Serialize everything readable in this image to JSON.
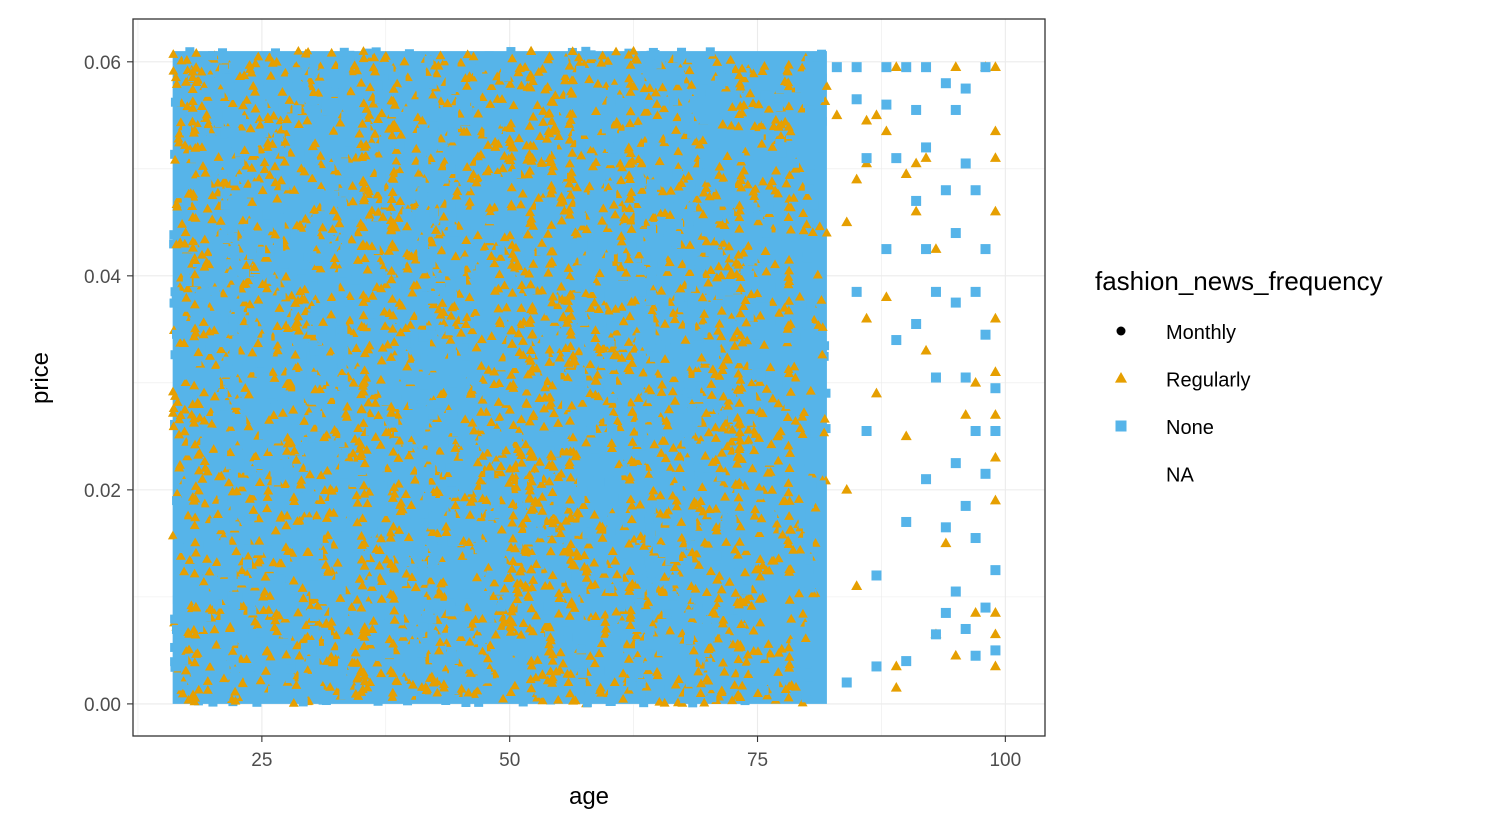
{
  "chart_data": {
    "type": "scatter",
    "title": "",
    "xlabel": "age",
    "ylabel": "price",
    "xlim": [
      12,
      104
    ],
    "ylim": [
      -0.003,
      0.064
    ],
    "grid": true,
    "legend_position": "right",
    "x_ticks": [
      {
        "value": 25,
        "label": "25"
      },
      {
        "value": 50,
        "label": "50"
      },
      {
        "value": 75,
        "label": "75"
      },
      {
        "value": 100,
        "label": "100"
      }
    ],
    "y_ticks": [
      {
        "value": 0.0,
        "label": "0.00"
      },
      {
        "value": 0.02,
        "label": "0.02"
      },
      {
        "value": 0.04,
        "label": "0.04"
      },
      {
        "value": 0.06,
        "label": "0.06"
      }
    ],
    "legend": {
      "title": "fashion_news_frequency",
      "entries": [
        {
          "label": "Monthly",
          "shape": "circle",
          "color": "#000000"
        },
        {
          "label": "Regularly",
          "shape": "triangle",
          "color": "#E69F00"
        },
        {
          "label": "None",
          "shape": "square",
          "color": "#56B4E9"
        },
        {
          "label": "NA",
          "shape": "none",
          "color": ""
        }
      ]
    },
    "series": [
      {
        "name": "Regularly",
        "shape": "triangle",
        "color": "#E69F00",
        "x_range_dense": [
          16,
          82
        ],
        "y_range": [
          0.0,
          0.061
        ],
        "sparse_points": [
          {
            "x": 99,
            "y": 0.0595
          },
          {
            "x": 98,
            "y": 0.0595
          },
          {
            "x": 95,
            "y": 0.0595
          },
          {
            "x": 99,
            "y": 0.0535
          },
          {
            "x": 99,
            "y": 0.051
          },
          {
            "x": 99,
            "y": 0.046
          },
          {
            "x": 99,
            "y": 0.036
          },
          {
            "x": 99,
            "y": 0.031
          },
          {
            "x": 99,
            "y": 0.027
          },
          {
            "x": 99,
            "y": 0.023
          },
          {
            "x": 99,
            "y": 0.019
          },
          {
            "x": 99,
            "y": 0.0085
          },
          {
            "x": 99,
            "y": 0.0065
          },
          {
            "x": 99,
            "y": 0.0035
          },
          {
            "x": 97,
            "y": 0.0085
          },
          {
            "x": 92,
            "y": 0.051
          },
          {
            "x": 91,
            "y": 0.0505
          },
          {
            "x": 91,
            "y": 0.046
          },
          {
            "x": 90,
            "y": 0.0495
          },
          {
            "x": 89,
            "y": 0.0035
          },
          {
            "x": 89,
            "y": 0.0015
          },
          {
            "x": 87,
            "y": 0.055
          },
          {
            "x": 86,
            "y": 0.0545
          },
          {
            "x": 86,
            "y": 0.0505
          },
          {
            "x": 86,
            "y": 0.036
          },
          {
            "x": 88,
            "y": 0.0535
          },
          {
            "x": 85,
            "y": 0.049
          },
          {
            "x": 93,
            "y": 0.0065
          },
          {
            "x": 93,
            "y": 0.0425
          },
          {
            "x": 89,
            "y": 0.0595
          },
          {
            "x": 83,
            "y": 0.055
          },
          {
            "x": 84,
            "y": 0.045
          },
          {
            "x": 87,
            "y": 0.029
          },
          {
            "x": 90,
            "y": 0.025
          },
          {
            "x": 92,
            "y": 0.033
          },
          {
            "x": 96,
            "y": 0.027
          },
          {
            "x": 94,
            "y": 0.015
          },
          {
            "x": 85,
            "y": 0.011
          },
          {
            "x": 88,
            "y": 0.038
          },
          {
            "x": 95,
            "y": 0.0045
          },
          {
            "x": 97,
            "y": 0.03
          },
          {
            "x": 84,
            "y": 0.02
          }
        ]
      },
      {
        "name": "None",
        "shape": "square",
        "color": "#56B4E9",
        "x_range_dense": [
          16,
          82
        ],
        "y_range": [
          0.0,
          0.061
        ],
        "sparse_points": [
          {
            "x": 81,
            "y": 0.0605
          },
          {
            "x": 83,
            "y": 0.0595
          },
          {
            "x": 85,
            "y": 0.0595
          },
          {
            "x": 88,
            "y": 0.0595
          },
          {
            "x": 90,
            "y": 0.0595
          },
          {
            "x": 92,
            "y": 0.0595
          },
          {
            "x": 94,
            "y": 0.058
          },
          {
            "x": 96,
            "y": 0.0575
          },
          {
            "x": 98,
            "y": 0.0595
          },
          {
            "x": 85,
            "y": 0.0565
          },
          {
            "x": 88,
            "y": 0.056
          },
          {
            "x": 91,
            "y": 0.0555
          },
          {
            "x": 95,
            "y": 0.0555
          },
          {
            "x": 92,
            "y": 0.052
          },
          {
            "x": 96,
            "y": 0.0505
          },
          {
            "x": 86,
            "y": 0.051
          },
          {
            "x": 89,
            "y": 0.051
          },
          {
            "x": 94,
            "y": 0.048
          },
          {
            "x": 97,
            "y": 0.048
          },
          {
            "x": 91,
            "y": 0.047
          },
          {
            "x": 95,
            "y": 0.044
          },
          {
            "x": 98,
            "y": 0.0425
          },
          {
            "x": 92,
            "y": 0.0425
          },
          {
            "x": 97,
            "y": 0.0385
          },
          {
            "x": 93,
            "y": 0.0385
          },
          {
            "x": 95,
            "y": 0.0375
          },
          {
            "x": 98,
            "y": 0.0345
          },
          {
            "x": 96,
            "y": 0.0305
          },
          {
            "x": 99,
            "y": 0.0295
          },
          {
            "x": 93,
            "y": 0.0305
          },
          {
            "x": 97,
            "y": 0.0255
          },
          {
            "x": 99,
            "y": 0.0255
          },
          {
            "x": 95,
            "y": 0.0225
          },
          {
            "x": 98,
            "y": 0.0215
          },
          {
            "x": 96,
            "y": 0.0185
          },
          {
            "x": 94,
            "y": 0.0165
          },
          {
            "x": 97,
            "y": 0.0155
          },
          {
            "x": 99,
            "y": 0.0125
          },
          {
            "x": 95,
            "y": 0.0105
          },
          {
            "x": 98,
            "y": 0.009
          },
          {
            "x": 96,
            "y": 0.007
          },
          {
            "x": 93,
            "y": 0.0065
          },
          {
            "x": 99,
            "y": 0.005
          },
          {
            "x": 90,
            "y": 0.004
          },
          {
            "x": 87,
            "y": 0.0035
          },
          {
            "x": 84,
            "y": 0.002
          },
          {
            "x": 88,
            "y": 0.0425
          },
          {
            "x": 89,
            "y": 0.034
          },
          {
            "x": 86,
            "y": 0.0255
          },
          {
            "x": 90,
            "y": 0.017
          },
          {
            "x": 87,
            "y": 0.012
          },
          {
            "x": 92,
            "y": 0.021
          },
          {
            "x": 91,
            "y": 0.0355
          },
          {
            "x": 85,
            "y": 0.0385
          },
          {
            "x": 94,
            "y": 0.0085
          },
          {
            "x": 97,
            "y": 0.0045
          }
        ]
      },
      {
        "name": "Monthly",
        "shape": "circle",
        "color": "#000000",
        "sparse_points": []
      }
    ]
  }
}
